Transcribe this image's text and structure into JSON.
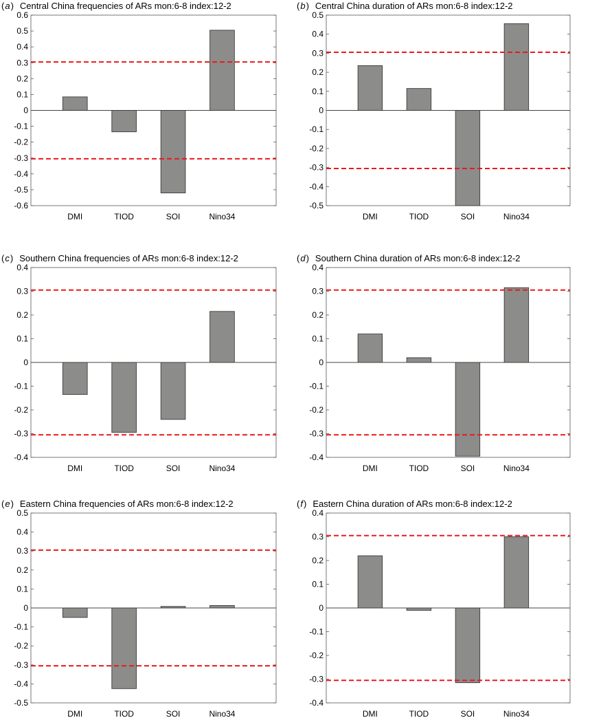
{
  "chart_data": [
    {
      "type": "bar",
      "panel_letter": "a",
      "title": "Central China frequencies of ARs  mon:6-8  index:12-2",
      "categories": [
        "DMI",
        "TIOD",
        "SOI",
        "Nino34"
      ],
      "values": [
        0.085,
        -0.135,
        -0.52,
        0.505
      ],
      "ylim": [
        -0.6,
        0.6
      ],
      "yticks": [
        "0.6",
        "0.5",
        "0.4",
        "0.3",
        "0.2",
        "0.1",
        "0",
        "-0.1",
        "-0.2",
        "-0.3",
        "-0.4",
        "-0.5",
        "-0.6"
      ],
      "threshold": 0.305,
      "grid": false
    },
    {
      "type": "bar",
      "panel_letter": "b",
      "title": "Central China duration of ARs  mon:6-8  index:12-2",
      "categories": [
        "DMI",
        "TIOD",
        "SOI",
        "Nino34"
      ],
      "values": [
        0.235,
        0.115,
        -0.5,
        0.455
      ],
      "ylim": [
        -0.5,
        0.5
      ],
      "yticks": [
        "0.5",
        "0.4",
        "0.3",
        "0.2",
        "0.1",
        "0",
        "-0.1",
        "-0.2",
        "-0.3",
        "-0.4",
        "-0.5"
      ],
      "threshold": 0.305,
      "grid": false
    },
    {
      "type": "bar",
      "panel_letter": "c",
      "title": "Southern China frequencies of ARs  mon:6-8  index:12-2",
      "categories": [
        "DMI",
        "TIOD",
        "SOI",
        "Nino34"
      ],
      "values": [
        -0.135,
        -0.295,
        -0.24,
        0.215
      ],
      "ylim": [
        -0.4,
        0.4
      ],
      "yticks": [
        "0.4",
        "0.3",
        "0.2",
        "0.1",
        "0",
        "-0.1",
        "-0.2",
        "-0.3",
        "-0.4"
      ],
      "threshold": 0.305,
      "grid": false
    },
    {
      "type": "bar",
      "panel_letter": "d",
      "title": "Southern China duration of ARs  mon:6-8  index:12-2",
      "categories": [
        "DMI",
        "TIOD",
        "SOI",
        "Nino34"
      ],
      "values": [
        0.12,
        0.02,
        -0.395,
        0.315
      ],
      "ylim": [
        -0.4,
        0.4
      ],
      "yticks": [
        "0.4",
        "0.3",
        "0.2",
        "0.1",
        "0",
        "-0.1",
        "-0.2",
        "-0.3",
        "-0.4"
      ],
      "threshold": 0.305,
      "grid": false
    },
    {
      "type": "bar",
      "panel_letter": "e",
      "title": "Eastern China frequencies of ARs  mon:6-8  index:12-2",
      "categories": [
        "DMI",
        "TIOD",
        "SOI",
        "Nino34"
      ],
      "values": [
        -0.05,
        -0.425,
        0.008,
        0.013
      ],
      "ylim": [
        -0.5,
        0.5
      ],
      "yticks": [
        "0.5",
        "0.4",
        "0.3",
        "0.2",
        "0.1",
        "0",
        "-0.1",
        "-0.2",
        "-0.3",
        "-0.4",
        "-0.5"
      ],
      "threshold": 0.305,
      "grid": false
    },
    {
      "type": "bar",
      "panel_letter": "f",
      "title": "Eastern China duration of ARs  mon:6-8  index:12-2",
      "categories": [
        "DMI",
        "TIOD",
        "SOI",
        "Nino34"
      ],
      "values": [
        0.22,
        -0.01,
        -0.315,
        0.3
      ],
      "ylim": [
        -0.4,
        0.4
      ],
      "yticks": [
        "0.4",
        "0.3",
        "0.2",
        "0.1",
        "0",
        "-0.1",
        "-0.2",
        "-0.3",
        "-0.4"
      ],
      "threshold": 0.305,
      "grid": false
    }
  ],
  "colors": {
    "bar_fill": "#8c8c8a",
    "bar_stroke": "#3a3a3a",
    "threshold_line": "#e8191c",
    "axes": "#555555",
    "zero_line": "#444444"
  }
}
